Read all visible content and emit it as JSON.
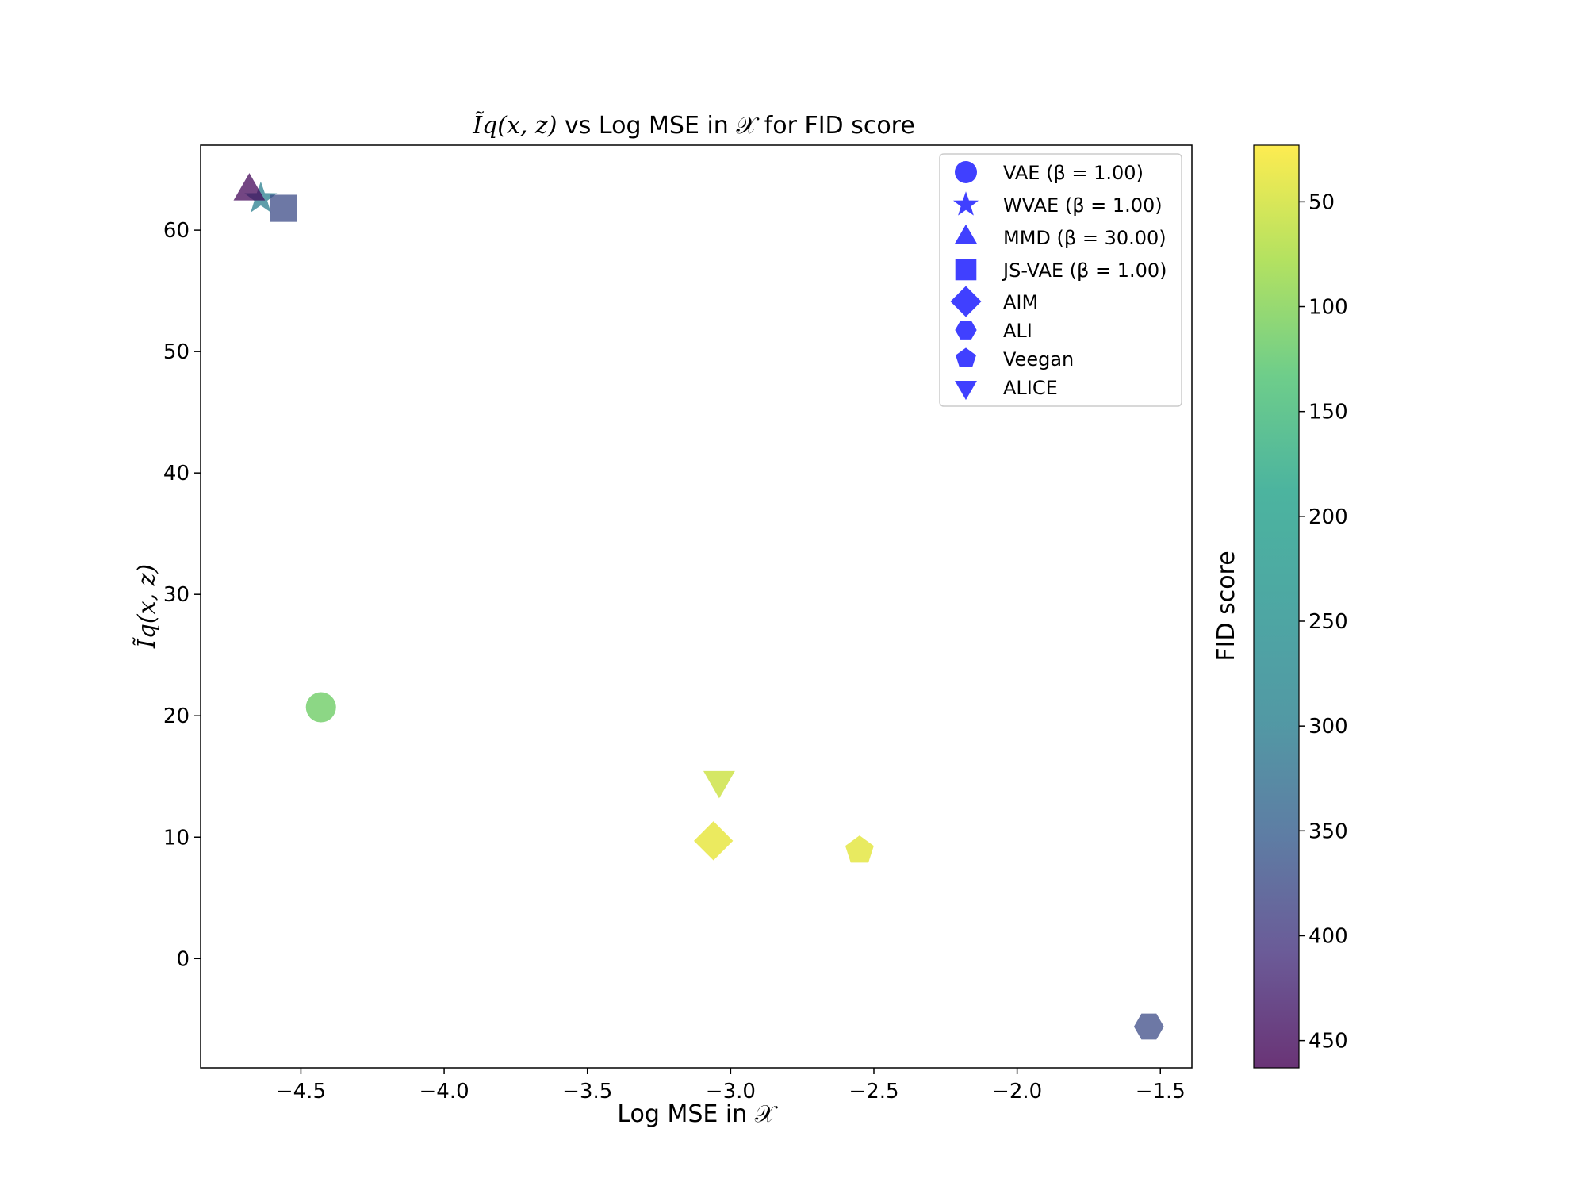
{
  "chart_data": {
    "type": "scatter",
    "title": {
      "math": "Ĩq(x, z)",
      "text": " vs Log MSE in 𝒳 for FID score"
    },
    "xlabel": "Log MSE in 𝒳",
    "ylabel": "Ĩq(x, z)",
    "xlim": [
      -4.85,
      -1.39
    ],
    "ylim": [
      -9,
      67
    ],
    "xticks": [
      -4.5,
      -4.0,
      -3.5,
      -3.0,
      -2.5,
      -2.0,
      -1.5
    ],
    "xtick_labels": [
      "−4.5",
      "−4.0",
      "−3.5",
      "−3.0",
      "−2.5",
      "−2.0",
      "−1.5"
    ],
    "yticks": [
      0,
      10,
      20,
      30,
      40,
      50,
      60
    ],
    "ytick_labels": [
      "0",
      "10",
      "20",
      "30",
      "40",
      "50",
      "60"
    ],
    "grid": false,
    "legend_position": "top-right",
    "legend_color": "#0000ff",
    "points": [
      {
        "name": "VAE (β = 1.00)",
        "marker": "circle",
        "x": -4.43,
        "y": 20.7,
        "fid": 115
      },
      {
        "name": "WVAE (β = 1.00)",
        "marker": "star",
        "x": -4.64,
        "y": 62.6,
        "fid": 300
      },
      {
        "name": "MMD (β = 30.00)",
        "marker": "triangle-up",
        "x": -4.68,
        "y": 63.2,
        "fid": 455
      },
      {
        "name": "JS-VAE (β = 1.00)",
        "marker": "square",
        "x": -4.56,
        "y": 61.8,
        "fid": 375
      },
      {
        "name": "AIM",
        "marker": "diamond",
        "x": -3.06,
        "y": 9.7,
        "fid": 38
      },
      {
        "name": "ALI",
        "marker": "hexagon",
        "x": -1.54,
        "y": -5.6,
        "fid": 375
      },
      {
        "name": "Veegan",
        "marker": "pentagon",
        "x": -2.55,
        "y": 8.9,
        "fid": 40
      },
      {
        "name": "ALICE",
        "marker": "triangle-down",
        "x": -3.04,
        "y": 14.7,
        "fid": 55
      }
    ],
    "colorbar": {
      "label": "FID score",
      "range": [
        23,
        463
      ],
      "inverted": true,
      "colormap": "viridis",
      "ticks": [
        50,
        100,
        150,
        200,
        250,
        300,
        350,
        400,
        450
      ],
      "tick_labels": [
        "50",
        "100",
        "150",
        "200",
        "250",
        "300",
        "350",
        "400",
        "450"
      ]
    }
  }
}
